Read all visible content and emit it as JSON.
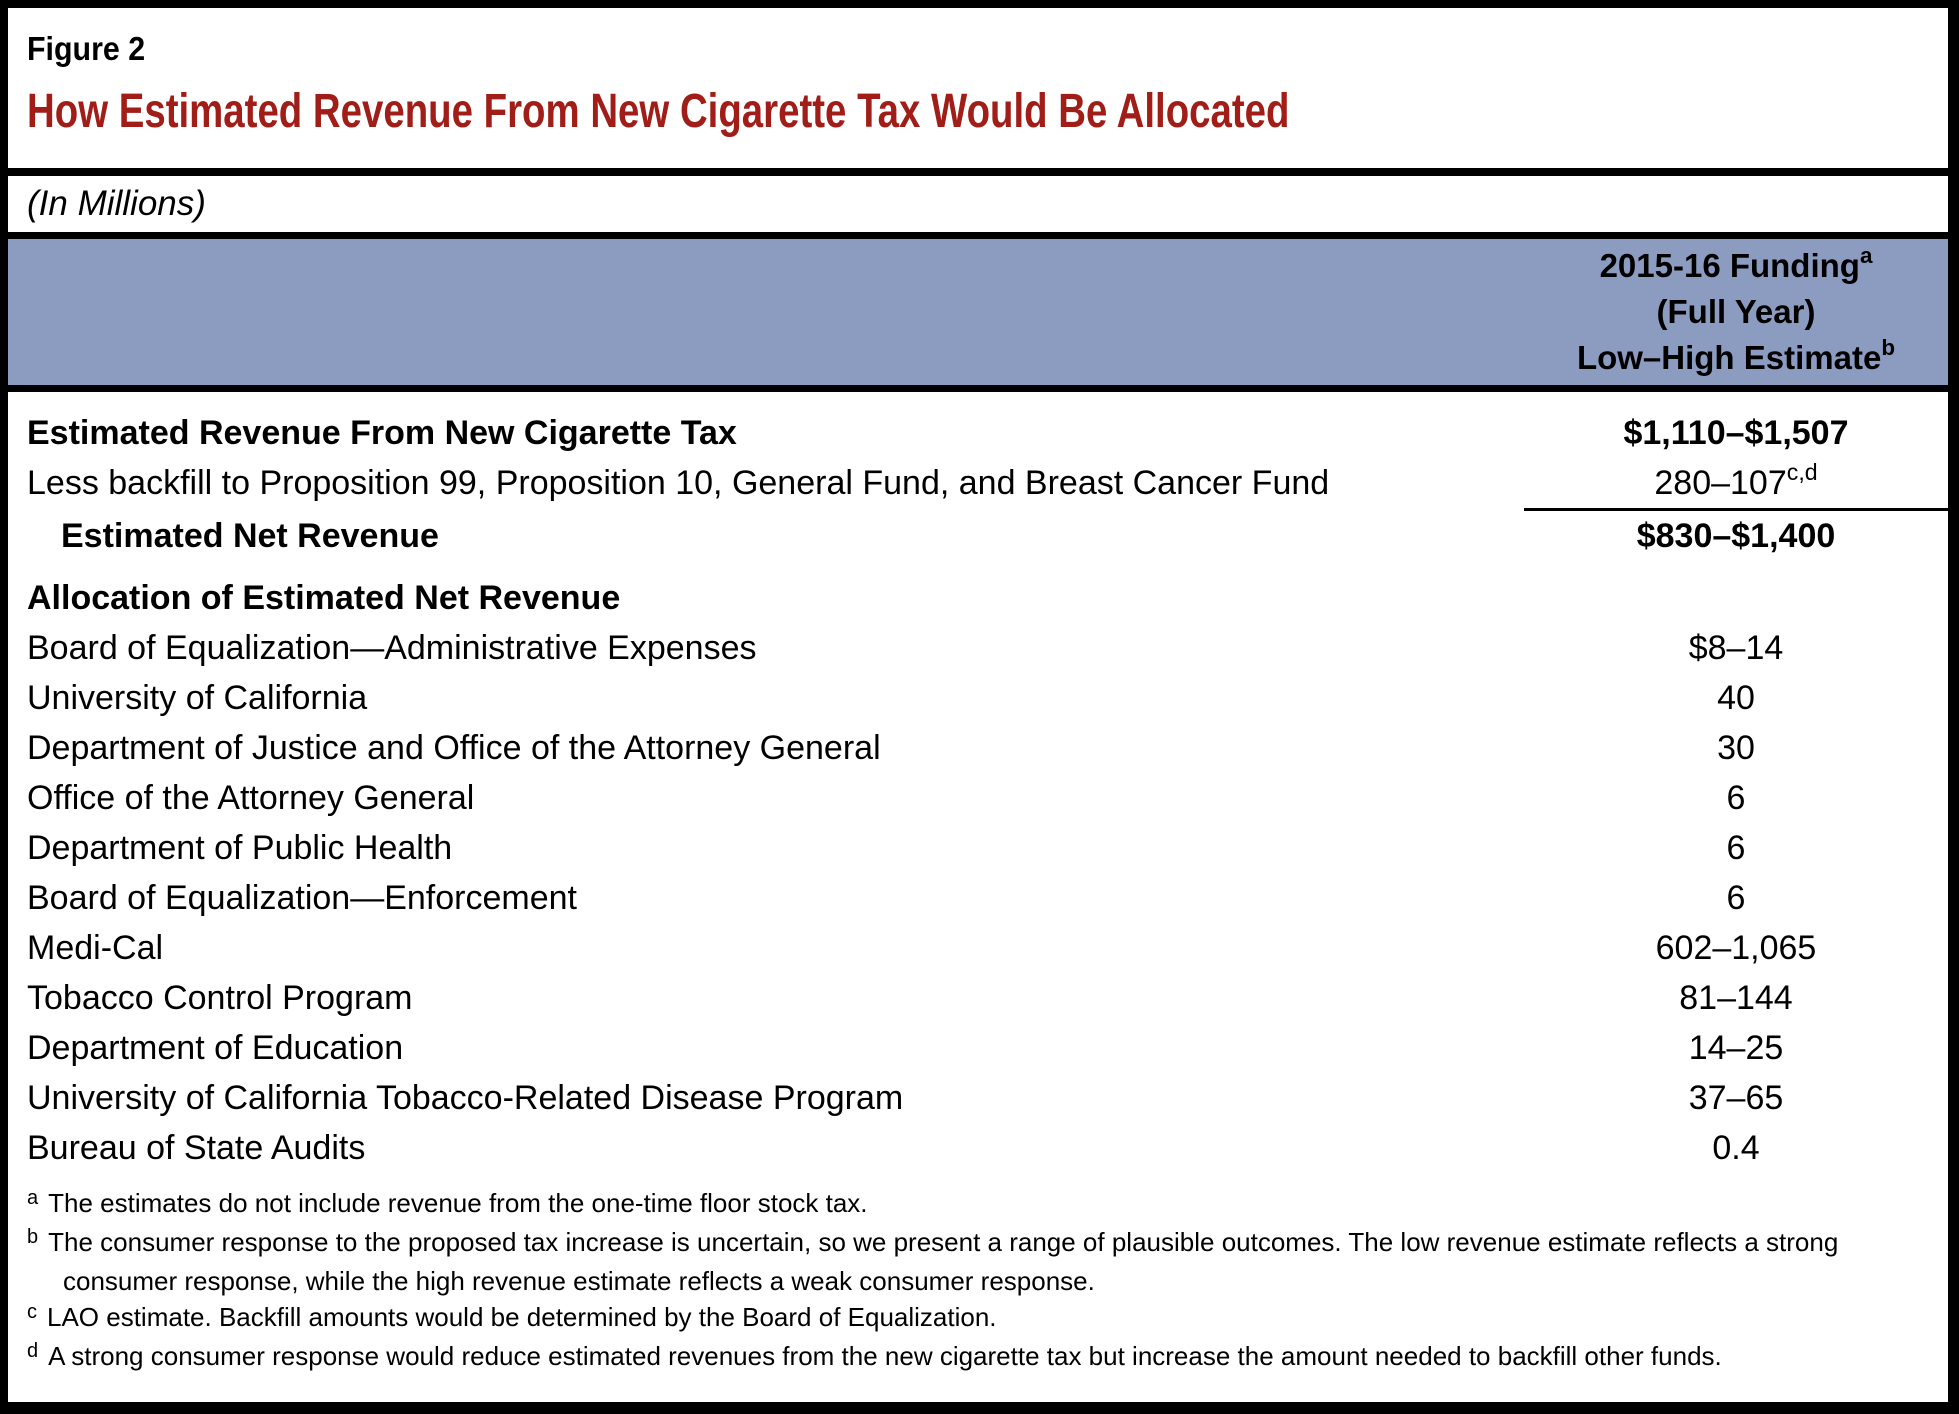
{
  "figure": {
    "label": "Figure 2",
    "title": "How Estimated Revenue From New Cigarette Tax Would Be Allocated",
    "subtitle": "(In Millions)"
  },
  "colors": {
    "header_band": "#8B9CC0",
    "title_red": "#A01D18",
    "rule_black": "#000000"
  },
  "column_header": {
    "lines": [
      {
        "text": "2015-16 Funding",
        "sup": "a"
      },
      {
        "text": "(Full Year)",
        "sup": ""
      },
      {
        "text": "Low–High Estimate",
        "sup": "b"
      }
    ]
  },
  "table": {
    "rows": [
      {
        "label": "Estimated Revenue From New Cigarette Tax",
        "value": "$1,110–$1,507",
        "value_sup": "",
        "label_bold": true,
        "value_bold": true,
        "indent": false,
        "section": false,
        "sum_rule_after": false
      },
      {
        "label": "Less backfill to Proposition 99, Proposition 10, General Fund, and Breast Cancer Fund",
        "value": "280–107",
        "value_sup": "c,d",
        "label_bold": false,
        "value_bold": false,
        "indent": false,
        "section": false,
        "sum_rule_after": true
      },
      {
        "label": "Estimated Net Revenue",
        "value": "$830–$1,400",
        "value_sup": "",
        "label_bold": true,
        "value_bold": true,
        "indent": true,
        "section": false,
        "sum_rule_after": false
      },
      {
        "label": "Allocation of Estimated Net Revenue",
        "value": "",
        "value_sup": "",
        "label_bold": true,
        "value_bold": false,
        "indent": false,
        "section": true,
        "sum_rule_after": false
      },
      {
        "label": "Board of Equalization—Administrative Expenses",
        "value": "$8–14",
        "value_sup": "",
        "label_bold": false,
        "value_bold": false,
        "indent": false,
        "section": false,
        "sum_rule_after": false
      },
      {
        "label": "University of California",
        "value": "40",
        "value_sup": "",
        "label_bold": false,
        "value_bold": false,
        "indent": false,
        "section": false,
        "sum_rule_after": false
      },
      {
        "label": "Department of Justice and Office of the Attorney General",
        "value": "30",
        "value_sup": "",
        "label_bold": false,
        "value_bold": false,
        "indent": false,
        "section": false,
        "sum_rule_after": false
      },
      {
        "label": "Office of the Attorney General",
        "value": "6",
        "value_sup": "",
        "label_bold": false,
        "value_bold": false,
        "indent": false,
        "section": false,
        "sum_rule_after": false
      },
      {
        "label": "Department of Public Health",
        "value": "6",
        "value_sup": "",
        "label_bold": false,
        "value_bold": false,
        "indent": false,
        "section": false,
        "sum_rule_after": false
      },
      {
        "label": "Board of Equalization—Enforcement",
        "value": "6",
        "value_sup": "",
        "label_bold": false,
        "value_bold": false,
        "indent": false,
        "section": false,
        "sum_rule_after": false
      },
      {
        "label": "Medi-Cal",
        "value": "602–1,065",
        "value_sup": "",
        "label_bold": false,
        "value_bold": false,
        "indent": false,
        "section": false,
        "sum_rule_after": false
      },
      {
        "label": "Tobacco Control Program",
        "value": "81–144",
        "value_sup": "",
        "label_bold": false,
        "value_bold": false,
        "indent": false,
        "section": false,
        "sum_rule_after": false
      },
      {
        "label": "Department of Education",
        "value": "14–25",
        "value_sup": "",
        "label_bold": false,
        "value_bold": false,
        "indent": false,
        "section": false,
        "sum_rule_after": false
      },
      {
        "label": "University of California Tobacco-Related Disease Program",
        "value": "37–65",
        "value_sup": "",
        "label_bold": false,
        "value_bold": false,
        "indent": false,
        "section": false,
        "sum_rule_after": false
      },
      {
        "label": "Bureau of State Audits",
        "value": "0.4",
        "value_sup": "",
        "label_bold": false,
        "value_bold": false,
        "indent": false,
        "section": false,
        "sum_rule_after": false
      }
    ]
  },
  "footnotes": [
    {
      "letter": "a",
      "text": "The estimates do not include revenue from the one-time floor stock tax."
    },
    {
      "letter": "b",
      "text": "The consumer response to the proposed tax increase is uncertain, so we present a range of plausible outcomes. The low revenue estimate reflects a strong consumer response, while the high revenue estimate reflects a weak consumer response."
    },
    {
      "letter": "c",
      "text": "LAO estimate. Backfill amounts would be determined by the Board of Equalization."
    },
    {
      "letter": "d",
      "text": "A strong consumer response would reduce estimated revenues from the new cigarette tax but increase the amount needed to backfill other funds."
    }
  ]
}
